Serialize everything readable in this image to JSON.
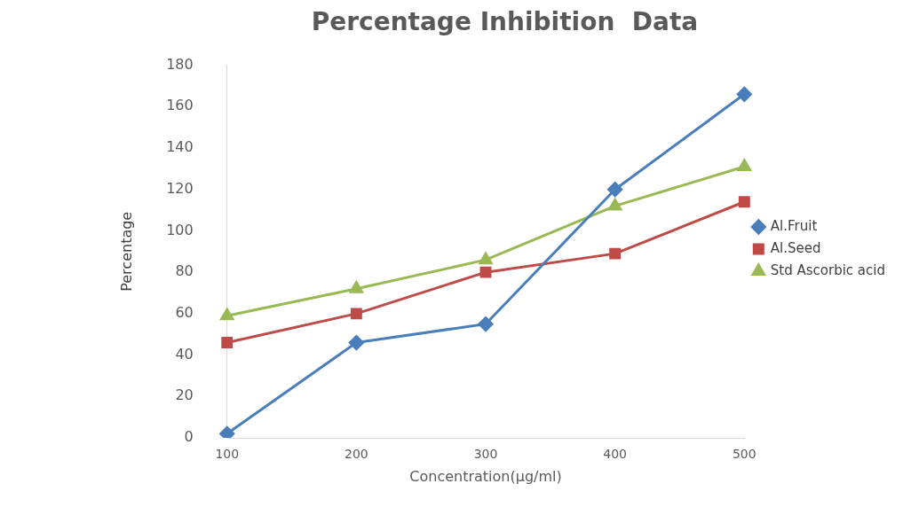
{
  "chart_data": {
    "type": "line",
    "title": "Percentage Inhibition  Data",
    "xlabel": "Concentration(µg/ml)",
    "ylabel": "Percentage",
    "categories": [
      "100",
      "200",
      "300",
      "400",
      "500"
    ],
    "series": [
      {
        "name": "Al.Fruit",
        "color": "#4a7ebb",
        "marker": "diamond",
        "values": [
          2,
          46,
          55,
          120,
          166
        ]
      },
      {
        "name": "Al.Seed",
        "color": "#be4b48",
        "marker": "square",
        "values": [
          46,
          60,
          80,
          89,
          114
        ]
      },
      {
        "name": "Std Ascorbic acid",
        "color": "#98b954",
        "marker": "triangle",
        "values": [
          59,
          72,
          86,
          112,
          131
        ]
      }
    ],
    "ylim": [
      0,
      180
    ],
    "yticks": [
      0,
      20,
      40,
      60,
      80,
      100,
      120,
      140,
      160,
      180
    ],
    "grid": false,
    "legend": "right",
    "line_style": "solid"
  }
}
